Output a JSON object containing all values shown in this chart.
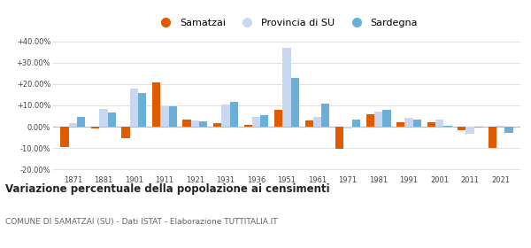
{
  "years": [
    1871,
    1881,
    1901,
    1911,
    1921,
    1931,
    1936,
    1951,
    1961,
    1971,
    1981,
    1991,
    2001,
    2011,
    2021
  ],
  "samatzai": [
    -9.5,
    -1.0,
    -5.5,
    21.0,
    3.5,
    1.5,
    1.0,
    8.0,
    3.0,
    -10.5,
    6.0,
    2.0,
    2.0,
    -1.5,
    -10.0
  ],
  "provincia_su": [
    1.5,
    8.5,
    18.0,
    9.5,
    3.0,
    10.5,
    4.5,
    37.0,
    4.5,
    -1.0,
    7.0,
    4.0,
    3.5,
    -3.5,
    0.5
  ],
  "sardegna": [
    4.5,
    6.5,
    16.0,
    9.5,
    2.5,
    11.5,
    5.5,
    23.0,
    11.0,
    3.5,
    8.0,
    3.5,
    0.5,
    -0.5,
    -3.0
  ],
  "color_samatzai": "#e05a00",
  "color_provincia": "#c8d8f0",
  "color_sardegna": "#6aafd6",
  "title": "Variazione percentuale della popolazione ai censimenti",
  "subtitle": "COMUNE DI SAMATZAI (SU) - Dati ISTAT - Elaborazione TUTTITALIA.IT",
  "legend_labels": [
    "Samatzai",
    "Provincia di SU",
    "Sardegna"
  ],
  "ylim": [
    -22,
    42
  ],
  "yticks": [
    -20.0,
    -10.0,
    0.0,
    10.0,
    20.0,
    30.0,
    40.0
  ],
  "ytick_labels": [
    "-20.00%",
    "-10.00%",
    "0.00%",
    "+10.00%",
    "+20.00%",
    "+30.00%",
    "+40.00%"
  ],
  "bg_color": "#ffffff",
  "grid_color": "#e0e0e8",
  "bar_width": 0.27
}
